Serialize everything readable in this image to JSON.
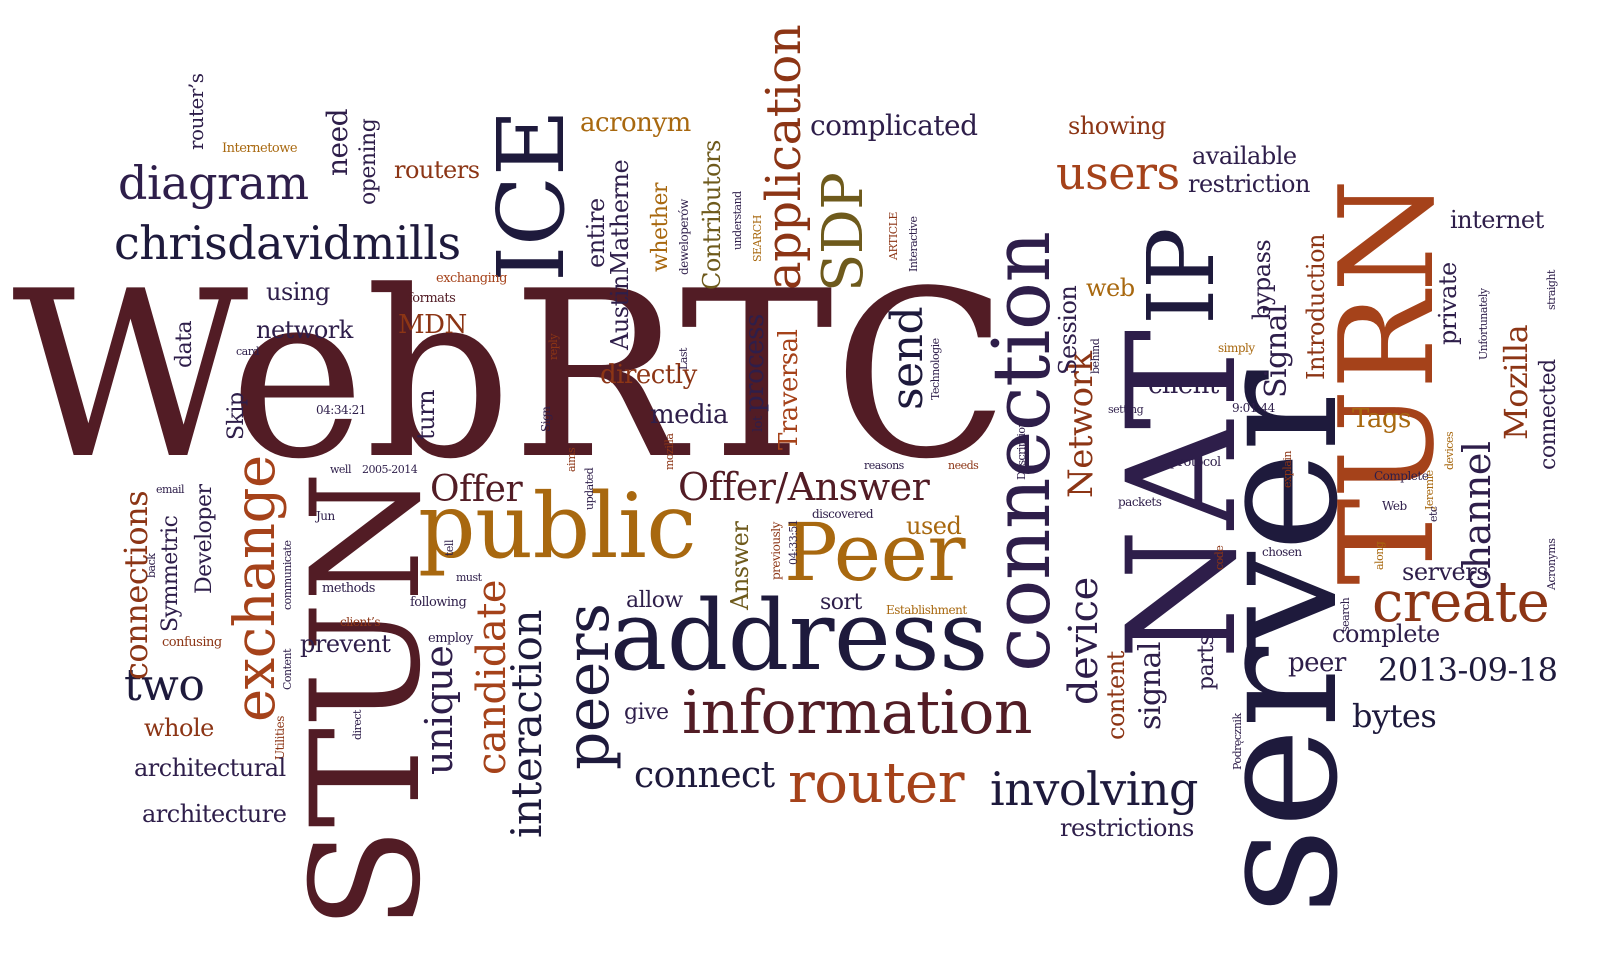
{
  "palette": {
    "dark_navy": "#1e1a3c",
    "plum": "#3f1a30",
    "maroon": "#521c25",
    "brick": "#8c3515",
    "rust": "#a5421a",
    "amber": "#a8680f",
    "olive": "#6e5a1c",
    "purple": "#2e1e4a",
    "background": "#ffffff"
  },
  "words": {
    "webrtc": "WebRTC",
    "server": "server",
    "stun": "STUN",
    "nat": "NAT",
    "turn": "TURN",
    "connection": "connection",
    "address": "address",
    "ice": "ICE",
    "public": "public",
    "peer": "Peer",
    "information": "information",
    "ip": "IP",
    "exchange": "exchange",
    "router": "router",
    "peers": "peers",
    "application": "application",
    "create": "create",
    "sdp": "SDP",
    "chrisdavidmills": "chrisdavidmills",
    "diagram": "diagram",
    "users": "users",
    "involving": "involving",
    "send": "send",
    "interaction": "interaction",
    "offer_answer": "Offer/Answer",
    "candidate": "candidate",
    "device": "device",
    "two": "two",
    "channel": "channel",
    "unique": "unique",
    "connect": "connect",
    "network_big": "Network",
    "connections": "connections",
    "offer": "Offer",
    "signal_a": "Signal",
    "signal_b": "signal",
    "mozilla": "Mozilla",
    "date_2013": "2013-09-18",
    "bytes": "bytes",
    "complicated": "complicated",
    "available": "available",
    "restriction": "restriction",
    "internet": "internet",
    "private": "private",
    "introduction": "Introduction",
    "bypass": "bypass",
    "web": "web",
    "session": "Session",
    "client": "client",
    "tags": "Tags",
    "servers": "servers",
    "complete_a": "complete",
    "peer_lower": "peer",
    "parts": "parts",
    "content_a": "content",
    "restrictions": "restrictions",
    "connected": "connected",
    "showing": "showing",
    "acronym": "acronym",
    "routers": "routers",
    "need": "need",
    "opening": "opening",
    "routers_apos": "router’s",
    "using": "using",
    "network": "network",
    "data": "data",
    "mdn": "MDN",
    "formats": "formats",
    "exchanging": "exchanging",
    "internetowe": "Internetowe",
    "entire": "entire",
    "austin": "AustinMatherne",
    "whether": "whether",
    "contributors": "Contributors",
    "deweloperow": "deweloperów",
    "understand": "understand",
    "search_caps": "SEARCH",
    "article": "ARTICLE",
    "interactive": "Interactive",
    "directly": "directly",
    "process": "process",
    "traversal": "Traversal",
    "media": "media",
    "lot": "lot",
    "last": "Last",
    "reply": "reply",
    "sign": "Sign",
    "aims": "aims",
    "updated": "updated",
    "mozilla_small": "mozilla",
    "time_0434": "04:34:21",
    "turn_lower": "turn",
    "skip": "Skip",
    "developer": "Developer",
    "symmetric": "Symmetric",
    "card": "card",
    "email": "email",
    "back": "back",
    "confusing": "confusing",
    "well": "well",
    "years": "2005-2014",
    "jun": "Jun",
    "communicate": "communicate",
    "content_b": "Content",
    "utilities": "Utilities",
    "direct": "direct",
    "clients": "client’s",
    "methods": "methods",
    "prevent": "prevent",
    "following": "following",
    "employ": "employ",
    "tell": "tell",
    "must": "must",
    "allow": "allow",
    "give": "give",
    "sort": "sort",
    "used": "used",
    "answer": "Answer",
    "previously": "previously",
    "time_0433": "04:33:51",
    "discovered": "discovered",
    "establishment": "Establishment",
    "reasons": "reasons",
    "needs": "needs",
    "whole": "whole",
    "architectural": "architectural",
    "architecture": "architecture",
    "technologie": "Technologie",
    "description": "Description",
    "behind": "behind",
    "setting": "setting",
    "protocol": "protocol",
    "packets": "packets",
    "code": "code",
    "explain": "explain",
    "chosen": "chosen",
    "search_lower": "search",
    "along": "along",
    "podrecznik": "Podręcznik",
    "simply": "simply",
    "time_0901": "9:01:44",
    "jeremie": "Jeremie",
    "devices": "devices",
    "etc": "etc",
    "web_small": "Web",
    "complete_b": "Complete",
    "unfortunately": "Unfortunately",
    "straight": "straight",
    "acronyms": "Acronyms"
  }
}
